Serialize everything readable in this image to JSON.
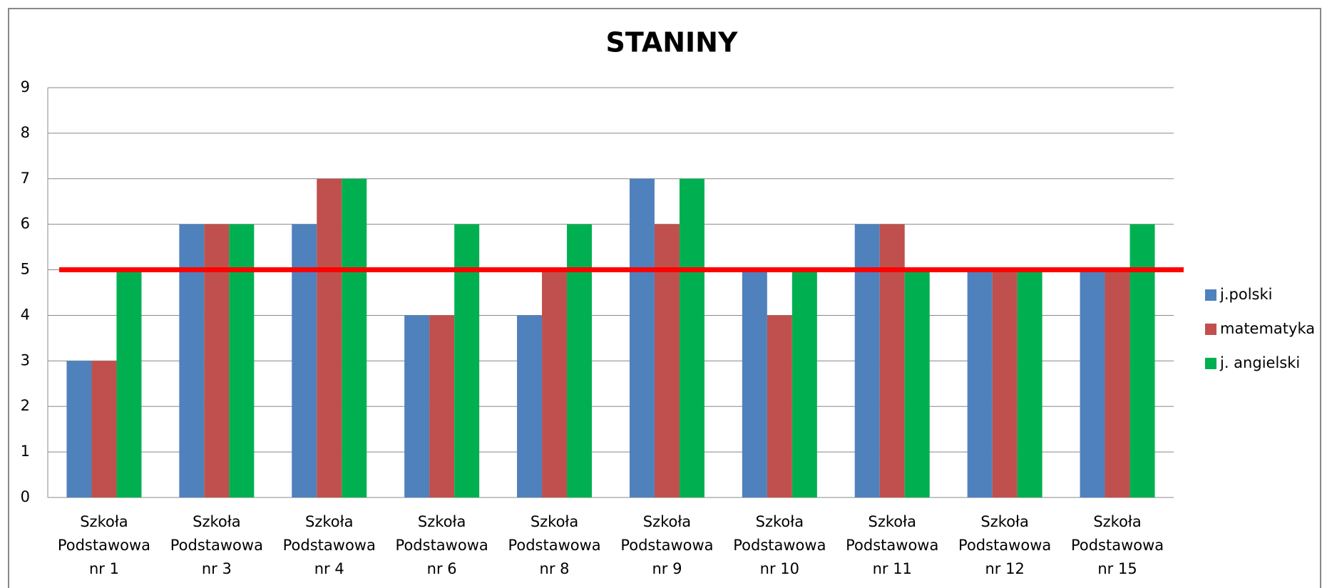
{
  "chart_data": {
    "type": "bar",
    "title": "STANINY",
    "categories": [
      [
        "Szkoła",
        "Podstawowa",
        "nr 1"
      ],
      [
        "Szkoła",
        "Podstawowa",
        "nr 3"
      ],
      [
        "Szkoła",
        "Podstawowa",
        "nr 4"
      ],
      [
        "Szkoła",
        "Podstawowa",
        "nr 6"
      ],
      [
        "Szkoła",
        "Podstawowa",
        "nr 8"
      ],
      [
        "Szkoła",
        "Podstawowa",
        "nr 9"
      ],
      [
        "Szkoła",
        "Podstawowa",
        "nr 10"
      ],
      [
        "Szkoła",
        "Podstawowa",
        "nr 11"
      ],
      [
        "Szkoła",
        "Podstawowa",
        "nr 12"
      ],
      [
        "Szkoła",
        "Podstawowa",
        "nr 15"
      ]
    ],
    "series": [
      {
        "name": "j.polski",
        "color": "#4f81bd",
        "values": [
          3,
          6,
          6,
          4,
          4,
          7,
          5,
          6,
          5,
          5
        ]
      },
      {
        "name": "matematyka",
        "color": "#c0504d",
        "values": [
          3,
          6,
          7,
          4,
          5,
          6,
          4,
          6,
          5,
          5
        ]
      },
      {
        "name": "j. angielski",
        "color": "#00b050",
        "values": [
          5,
          6,
          7,
          6,
          6,
          7,
          5,
          5,
          5,
          6
        ]
      }
    ],
    "reference_line": {
      "value": 5,
      "color": "#ff0000"
    },
    "ylim": [
      0,
      9
    ],
    "yticks": [
      0,
      1,
      2,
      3,
      4,
      5,
      6,
      7,
      8,
      9
    ],
    "grid": true,
    "legend": "right"
  }
}
